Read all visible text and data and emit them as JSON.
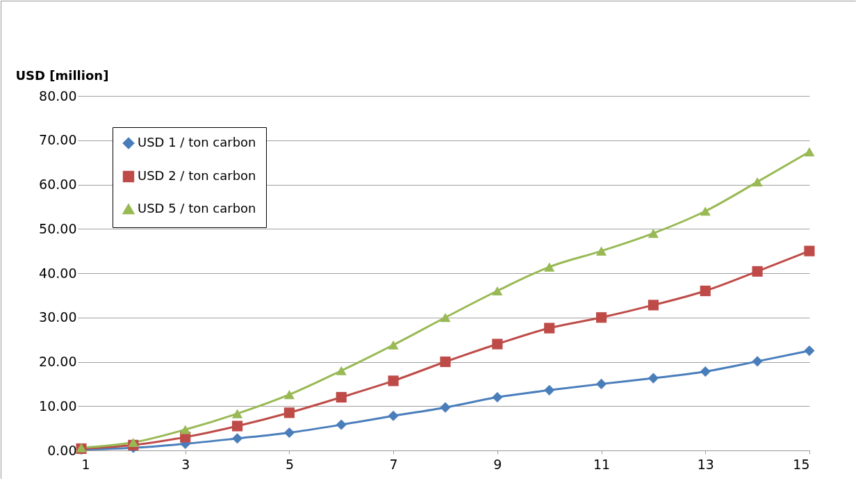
{
  "chart_data": {
    "type": "line",
    "ylabel": "USD [million]",
    "x": [
      1,
      2,
      3,
      4,
      5,
      6,
      7,
      8,
      9,
      10,
      11,
      12,
      13,
      14,
      15
    ],
    "xlim": [
      1,
      15
    ],
    "xticks": [
      1,
      3,
      5,
      7,
      9,
      11,
      13,
      15
    ],
    "ylim": [
      0,
      80
    ],
    "yticks": [
      {
        "value": 0,
        "label": "0.00"
      },
      {
        "value": 10,
        "label": "10.00"
      },
      {
        "value": 20,
        "label": "20.00"
      },
      {
        "value": 30,
        "label": "30.00"
      },
      {
        "value": 40,
        "label": "40.00"
      },
      {
        "value": 50,
        "label": "50.00"
      },
      {
        "value": 60,
        "label": "60.00"
      },
      {
        "value": 70,
        "label": "70.00"
      },
      {
        "value": 80,
        "label": "80.00"
      }
    ],
    "grid": "y",
    "legend": "top left",
    "series": [
      {
        "name": "USD 1 / ton carbon",
        "color": "#4a7ebb",
        "marker": "diamond",
        "values": [
          0.2,
          0.6,
          1.5,
          2.7,
          4.0,
          5.8,
          7.8,
          9.7,
          12.0,
          13.6,
          15.0,
          16.3,
          17.8,
          20.1,
          22.5
        ]
      },
      {
        "name": "USD 2 / ton carbon",
        "color": "#be4b48",
        "marker": "square",
        "values": [
          0.4,
          1.2,
          3.0,
          5.5,
          8.5,
          12.0,
          15.7,
          20.0,
          24.0,
          27.6,
          30.0,
          32.8,
          36.0,
          40.4,
          45.0
        ]
      },
      {
        "name": "USD 5 / ton carbon",
        "color": "#98b954",
        "marker": "triangle",
        "values": [
          0.6,
          1.8,
          4.7,
          8.3,
          12.6,
          18.0,
          23.8,
          30.0,
          36.0,
          41.4,
          45.0,
          49.0,
          54.0,
          60.6,
          67.4
        ]
      }
    ]
  }
}
